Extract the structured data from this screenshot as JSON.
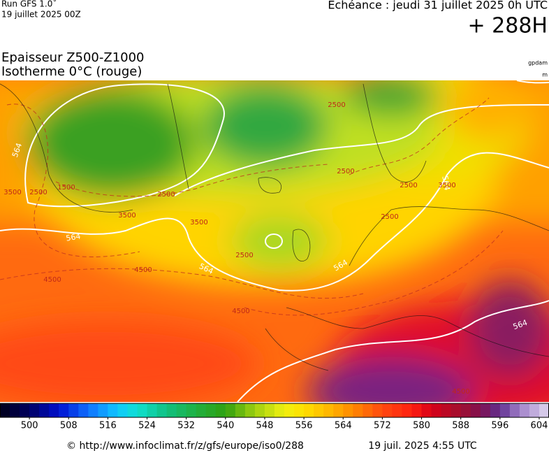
{
  "header": {
    "run": "Run GFS 1.0˚",
    "date": "19 juillet 2025 00Z",
    "echeance": "Echéance : jeudi 31 juillet 2025 0h UTC",
    "lead": "+ 288H"
  },
  "title": {
    "line1": "Epaisseur Z500-Z1000",
    "line2": "Isotherme 0°C (rouge)"
  },
  "units": [
    "gpdam",
    "m"
  ],
  "map": {
    "thickness_labels": [
      "564",
      "564",
      "564",
      "564",
      "564",
      "564"
    ],
    "isotherm_labels": [
      "3500",
      "2500",
      "1500",
      "2500",
      "3500",
      "2500",
      "3500",
      "4500",
      "4500",
      "4500",
      "2500",
      "2500",
      "2500",
      "3500",
      "2500",
      "4500"
    ]
  },
  "colorbar": {
    "range": [
      494,
      606
    ],
    "ticks": [
      500,
      508,
      516,
      524,
      532,
      540,
      548,
      556,
      564,
      572,
      580,
      588,
      596,
      604
    ]
  },
  "footer": {
    "url": "© http://www.infoclimat.fr/z/gfs/europe/iso0/288",
    "timestamp": "19 juil. 2025  4:55 UTC"
  }
}
